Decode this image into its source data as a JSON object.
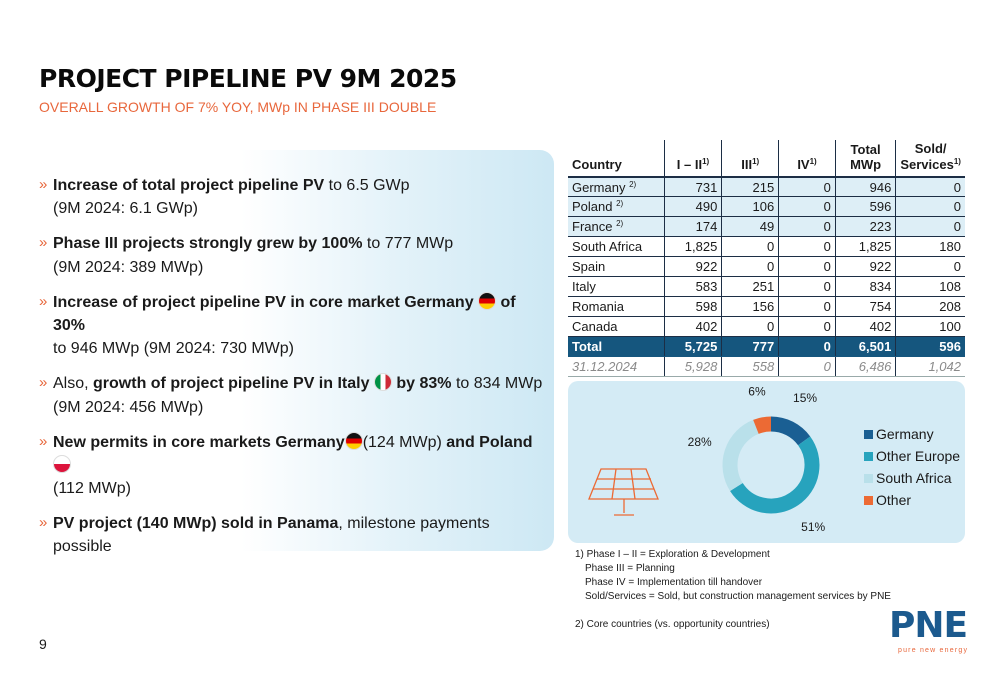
{
  "header": {
    "title": "PROJECT PIPELINE PV 9M 2025",
    "subtitle": "OVERALL GROWTH OF 7% YOY, MWp IN PHASE III DOUBLE"
  },
  "bullets": {
    "b1": {
      "bold": "Increase of total project pipeline PV",
      "text": " to 6.5 GWp",
      "line2": "(9M 2024: 6.1 GWp)"
    },
    "b2": {
      "bold": "Phase III projects strongly grew by 100%",
      "text": " to 777 MWp",
      "line2": "(9M 2024: 389 MWp)"
    },
    "b3": {
      "bold": "Increase of project pipeline PV in core market Germany",
      "bold2": " of 30%",
      "line2": "to 946 MWp (9M 2024: 730 MWp)"
    },
    "b4": {
      "pre": "Also, ",
      "bold": "growth of project pipeline PV in Italy",
      "bold2": " by 83%",
      "text": " to 834 MWp",
      "line2": "(9M 2024: 456 MWp)"
    },
    "b5": {
      "bold": "New permits in core markets Germany",
      "text": "(124 MWp) ",
      "bold2": "and Poland",
      "line2": "(112 MWp)"
    },
    "b6": {
      "bold": "PV project (140 MWp) sold in Panama",
      "text": ", milestone payments possible"
    }
  },
  "table": {
    "headers": {
      "country": "Country",
      "p12": "I – II",
      "p3": "III",
      "p4": "IV",
      "total_1": "Total",
      "total_2": "MWp",
      "sold_1": "Sold/",
      "sold_2": "Services"
    },
    "footnote_marks": {
      "one": "1)",
      "two": "2)"
    },
    "rows": [
      {
        "country": "Germany",
        "p12": "731",
        "p3": "215",
        "p4": "0",
        "total": "946",
        "sold": "0"
      },
      {
        "country": "Poland",
        "p12": "490",
        "p3": "106",
        "p4": "0",
        "total": "596",
        "sold": "0"
      },
      {
        "country": "France",
        "p12": "174",
        "p3": "49",
        "p4": "0",
        "total": "223",
        "sold": "0"
      },
      {
        "country": "South Africa",
        "p12": "1,825",
        "p3": "0",
        "p4": "0",
        "total": "1,825",
        "sold": "180"
      },
      {
        "country": "Spain",
        "p12": "922",
        "p3": "0",
        "p4": "0",
        "total": "922",
        "sold": "0"
      },
      {
        "country": "Italy",
        "p12": "583",
        "p3": "251",
        "p4": "0",
        "total": "834",
        "sold": "108"
      },
      {
        "country": "Romania",
        "p12": "598",
        "p3": "156",
        "p4": "0",
        "total": "754",
        "sold": "208"
      },
      {
        "country": "Canada",
        "p12": "402",
        "p3": "0",
        "p4": "0",
        "total": "402",
        "sold": "100"
      }
    ],
    "total": {
      "country": "Total",
      "p12": "5,725",
      "p3": "777",
      "p4": "0",
      "total": "6,501",
      "sold": "596"
    },
    "prev": {
      "country": "31.12.2024",
      "p12": "5,928",
      "p3": "558",
      "p4": "0",
      "total": "6,486",
      "sold": "1,042"
    }
  },
  "chart_data": {
    "type": "pie",
    "categories": [
      "Germany",
      "Other Europe",
      "South Africa",
      "Other"
    ],
    "values": [
      15,
      51,
      28,
      6
    ],
    "labels": [
      "15%",
      "51%",
      "28%",
      "6%"
    ],
    "colors": [
      "#1a5f93",
      "#27a3bd",
      "#b9e0ea",
      "#ec6a34"
    ],
    "legend_position": "right"
  },
  "footnotes": {
    "f1": "1) Phase I – II = Exploration & Development",
    "f2": "Phase III = Planning",
    "f3": "Phase IV = Implementation till handover",
    "f4": "Sold/Services = Sold, but construction management services by PNE",
    "f5": "2) Core countries (vs. opportunity countries)"
  },
  "page_number": "9",
  "logo": {
    "name": "PNE",
    "tagline": "pure new energy"
  },
  "icons": {
    "solar": "solar-panel-icon"
  }
}
